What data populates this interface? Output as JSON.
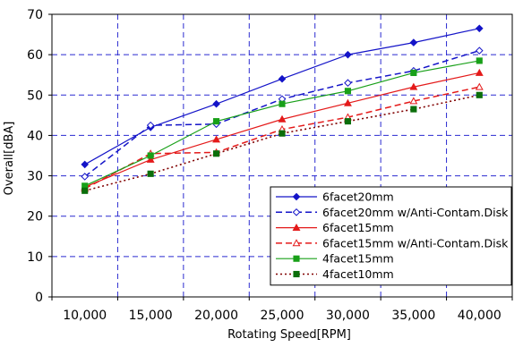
{
  "chart_data": {
    "type": "line",
    "title": "",
    "xlabel": "Rotating Speed[RPM]",
    "ylabel": "Overall[dBA]",
    "categories": [
      "10,000",
      "15,000",
      "20,000",
      "25,000",
      "30,000",
      "35,000",
      "40,000"
    ],
    "x": [
      10000,
      15000,
      20000,
      25000,
      30000,
      35000,
      40000
    ],
    "ylim": [
      0,
      70
    ],
    "yticks": [
      "0",
      "10",
      "20",
      "30",
      "40",
      "50",
      "60",
      "70"
    ],
    "grid": true,
    "legend_position": "bottom-right",
    "series": [
      {
        "name": "6facet20mm",
        "values": [
          32.8,
          42.0,
          47.8,
          54.0,
          60.0,
          63.0,
          66.5
        ],
        "color": "#1414c8",
        "dash": "solid",
        "marker": "diamond",
        "marker_fill": "filled"
      },
      {
        "name": "6facet20mm w/Anti-Contam.Disk",
        "values": [
          29.8,
          42.5,
          42.8,
          49.0,
          53.0,
          56.0,
          61.0
        ],
        "color": "#1414c8",
        "dash": "dashed",
        "marker": "diamond",
        "marker_fill": "open"
      },
      {
        "name": "6facet15mm",
        "values": [
          27.2,
          34.0,
          39.0,
          44.0,
          48.0,
          52.0,
          55.5
        ],
        "color": "#e41a1a",
        "dash": "solid",
        "marker": "triangle",
        "marker_fill": "filled"
      },
      {
        "name": "6facet15mm w/Anti-Contam.Disk",
        "values": [
          26.8,
          35.5,
          35.8,
          41.5,
          44.5,
          48.5,
          52.0
        ],
        "color": "#e41a1a",
        "dash": "dashed",
        "marker": "triangle",
        "marker_fill": "open"
      },
      {
        "name": "4facet15mm",
        "values": [
          27.5,
          35.0,
          43.5,
          47.8,
          51.0,
          55.5,
          58.5
        ],
        "color": "#18a018",
        "dash": "solid",
        "marker": "square",
        "marker_fill": "filled"
      },
      {
        "name": "4facet10mm",
        "values": [
          26.3,
          30.5,
          35.5,
          40.5,
          43.5,
          46.5,
          50.0
        ],
        "color": "#800000",
        "dash": "dotted",
        "marker": "square",
        "marker_fill": "filled",
        "marker_color": "#0b6e0b"
      }
    ]
  }
}
